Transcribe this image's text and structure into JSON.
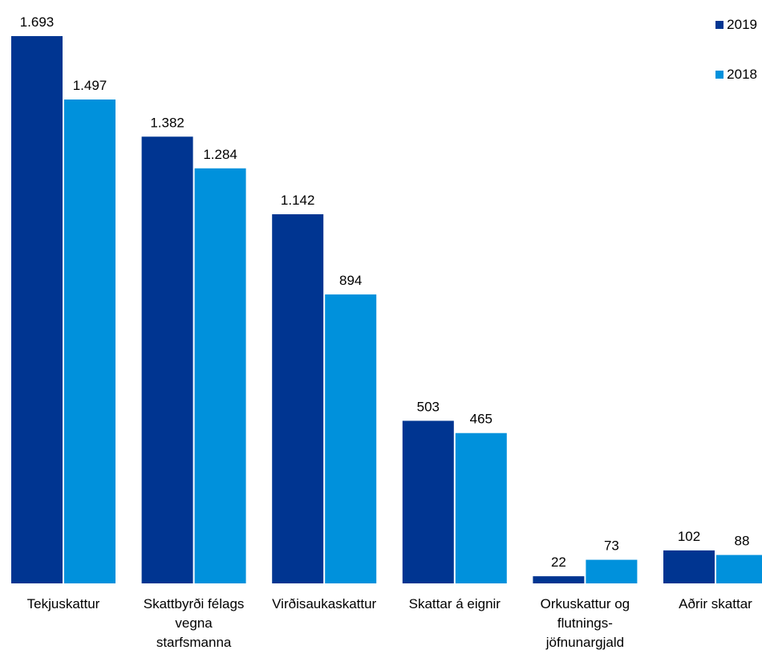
{
  "chart_data": {
    "type": "bar",
    "categories": [
      [
        "Tekjuskattur"
      ],
      [
        "Skattbyrði félags",
        "vegna",
        "starfsmanna"
      ],
      [
        "Virðisaukaskattur"
      ],
      [
        "Skattar á eignir"
      ],
      [
        "Orkuskattur og",
        "flutnings-",
        "jöfnunargjald"
      ],
      [
        "Aðrir skattar"
      ]
    ],
    "series": [
      {
        "name": "2019",
        "color": "#003591",
        "values": [
          1693,
          1382,
          1142,
          503,
          22,
          102
        ],
        "labels": [
          "1.693",
          "1.382",
          "1.142",
          "503",
          "22",
          "102"
        ]
      },
      {
        "name": "2018",
        "color": "#0091dc",
        "values": [
          1497,
          1284,
          894,
          465,
          73,
          88
        ],
        "labels": [
          "1.497",
          "1.284",
          "894",
          "465",
          "73",
          "88"
        ]
      }
    ],
    "ylim": [
      0,
      1693
    ],
    "legend_position": "top-right",
    "grid": false
  }
}
